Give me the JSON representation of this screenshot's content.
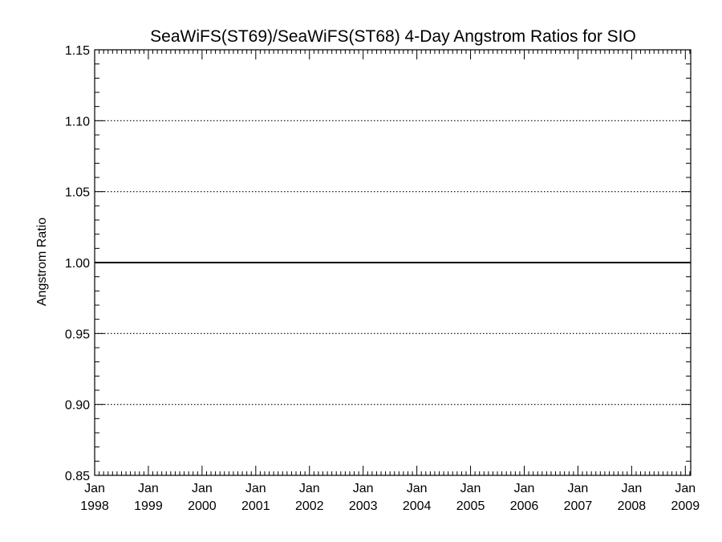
{
  "chart_data": {
    "type": "line",
    "title": "SeaWiFS(ST69)/SeaWiFS(ST68) 4-Day Angstrom Ratios for SIO",
    "xlabel": "",
    "ylabel": "Angstrom Ratio",
    "ylim": [
      0.85,
      1.15
    ],
    "yticks": [
      "0.85",
      "0.90",
      "0.95",
      "1.00",
      "1.05",
      "1.10",
      "1.15"
    ],
    "xlim": [
      1998,
      2009.1
    ],
    "xticks": [
      {
        "month": "Jan",
        "year": "1998"
      },
      {
        "month": "Jan",
        "year": "1999"
      },
      {
        "month": "Jan",
        "year": "2000"
      },
      {
        "month": "Jan",
        "year": "2001"
      },
      {
        "month": "Jan",
        "year": "2002"
      },
      {
        "month": "Jan",
        "year": "2003"
      },
      {
        "month": "Jan",
        "year": "2004"
      },
      {
        "month": "Jan",
        "year": "2005"
      },
      {
        "month": "Jan",
        "year": "2006"
      },
      {
        "month": "Jan",
        "year": "2007"
      },
      {
        "month": "Jan",
        "year": "2008"
      },
      {
        "month": "Jan",
        "year": "2009"
      }
    ],
    "grid": "dotted horizontal at 0.90, 0.95, 1.05, 1.10",
    "reference_line": 1.0,
    "series": []
  }
}
